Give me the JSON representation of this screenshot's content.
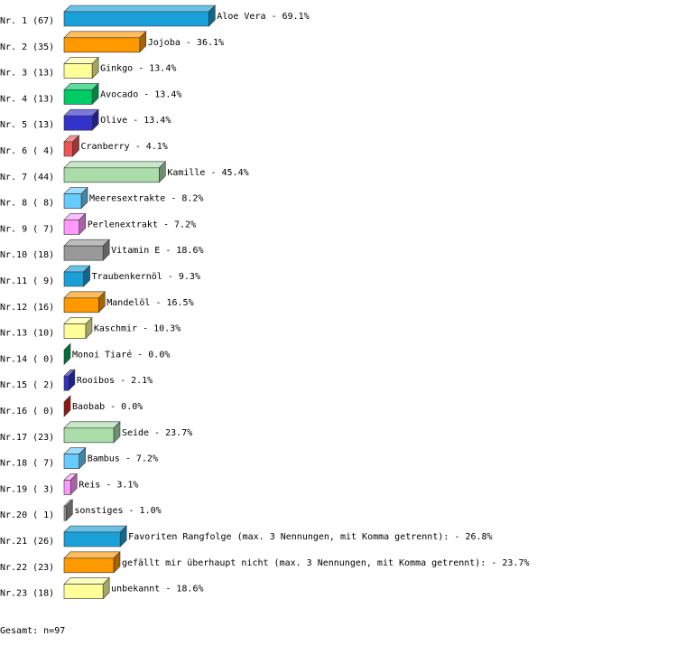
{
  "chart_data": {
    "type": "bar",
    "orientation": "horizontal",
    "categories": [
      "Nr. 1 (67)",
      "Nr. 2 (35)",
      "Nr. 3 (13)",
      "Nr. 4 (13)",
      "Nr. 5 (13)",
      "Nr. 6 ( 4)",
      "Nr. 7 (44)",
      "Nr. 8 ( 8)",
      "Nr. 9 ( 7)",
      "Nr.10 (18)",
      "Nr.11 ( 9)",
      "Nr.12 (16)",
      "Nr.13 (10)",
      "Nr.14 ( 0)",
      "Nr.15 ( 2)",
      "Nr.16 ( 0)",
      "Nr.17 (23)",
      "Nr.18 ( 7)",
      "Nr.19 ( 3)",
      "Nr.20 ( 1)",
      "Nr.21 (26)",
      "Nr.22 (23)",
      "Nr.23 (18)"
    ],
    "values": [
      69.1,
      36.1,
      13.4,
      13.4,
      13.4,
      4.1,
      45.4,
      8.2,
      7.2,
      18.6,
      9.3,
      16.5,
      10.3,
      0.0,
      2.1,
      0.0,
      23.7,
      7.2,
      3.1,
      1.0,
      26.8,
      23.7,
      18.6
    ],
    "value_labels": [
      "Aloe Vera -  69.1%",
      "Jojoba -  36.1%",
      "Ginkgo -  13.4%",
      "Avocado -  13.4%",
      "Olive -  13.4%",
      "Cranberry -   4.1%",
      "Kamille -  45.4%",
      "Meeresextrakte -   8.2%",
      "Perlenextrakt -   7.2%",
      "Vitamin E -  18.6%",
      "Traubenkernöl -   9.3%",
      "Mandelöl -  16.5%",
      "Kaschmir -  10.3%",
      "Monoi Tiaré -   0.0%",
      "Rooibos -   2.1%",
      "Baobab -   0.0%",
      "Seide -  23.7%",
      "Bambus -   7.2%",
      "Reis -   3.1%",
      "sonstiges -   1.0%",
      "Favoriten Rangfolge (max. 3 Nennungen, mit Komma getrennt): -  26.8%",
      "gefällt mir überhaupt nicht (max. 3 Nennungen, mit Komma getrennt): -  23.7%",
      "unbekannt -  18.6%"
    ],
    "colors": [
      "#1aa0d8",
      "#ff9900",
      "#ffff99",
      "#00cc66",
      "#3333cc",
      "#ee5555",
      "#aaddaa",
      "#66ccff",
      "#ff99ff",
      "#999999",
      "#1aa0d8",
      "#ff9900",
      "#ffff99",
      "#00aa55",
      "#3333cc",
      "#dd2222",
      "#aaddaa",
      "#66ccff",
      "#ff99ff",
      "#999999",
      "#1aa0d8",
      "#ff9900",
      "#ffff99"
    ],
    "footer": "Gesamt: n=97"
  }
}
